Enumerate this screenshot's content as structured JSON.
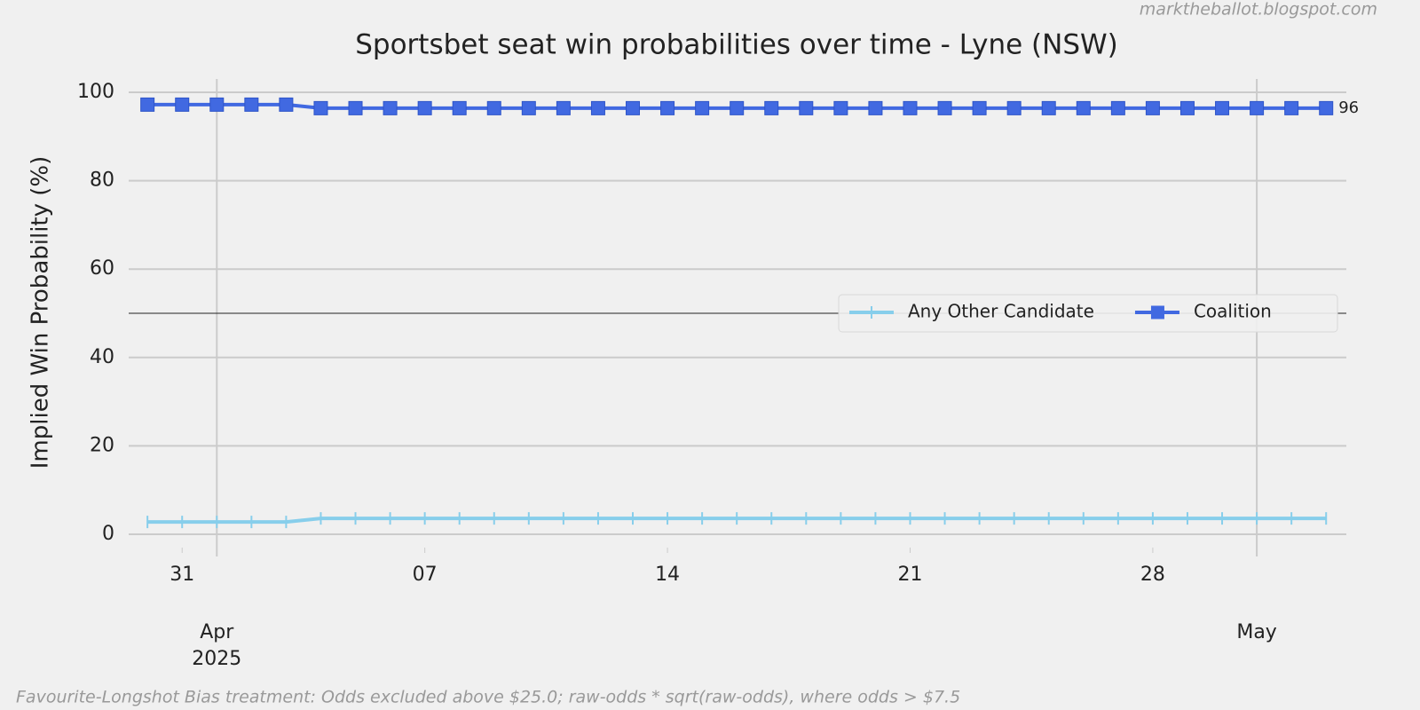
{
  "chart_data": {
    "type": "line",
    "title": "Sportsbet seat win probabilities over time - Lyne (NSW)",
    "y_label": "Implied Win Probability (%)",
    "watermark": "marktheballot.blogspot.com",
    "footnote": "Favourite-Longshot Bias treatment: Odds excluded above $25.0; raw-odds * sqrt(raw-odds), where odds > $7.5",
    "x": [
      "2025-03-30",
      "2025-03-31",
      "2025-04-01",
      "2025-04-02",
      "2025-04-03",
      "2025-04-04",
      "2025-04-05",
      "2025-04-06",
      "2025-04-07",
      "2025-04-08",
      "2025-04-09",
      "2025-04-10",
      "2025-04-11",
      "2025-04-12",
      "2025-04-13",
      "2025-04-14",
      "2025-04-15",
      "2025-04-16",
      "2025-04-17",
      "2025-04-18",
      "2025-04-19",
      "2025-04-20",
      "2025-04-21",
      "2025-04-22",
      "2025-04-23",
      "2025-04-24",
      "2025-04-25",
      "2025-04-26",
      "2025-04-27",
      "2025-04-28",
      "2025-04-29",
      "2025-04-30",
      "2025-05-01",
      "2025-05-02",
      "2025-05-03"
    ],
    "series": [
      {
        "name": "Any Other Candidate",
        "color": "#87ceeb",
        "marker": "tick",
        "values": [
          2.8,
          2.8,
          2.8,
          2.8,
          2.8,
          3.6,
          3.6,
          3.6,
          3.6,
          3.6,
          3.6,
          3.6,
          3.6,
          3.6,
          3.6,
          3.6,
          3.6,
          3.6,
          3.6,
          3.6,
          3.6,
          3.6,
          3.6,
          3.6,
          3.6,
          3.6,
          3.6,
          3.6,
          3.6,
          3.6,
          3.6,
          3.6,
          3.6,
          3.6,
          3.6
        ]
      },
      {
        "name": "Coalition",
        "color": "#4169e1",
        "marker": "square",
        "end_label": "96",
        "values": [
          97.2,
          97.2,
          97.2,
          97.2,
          97.2,
          96.4,
          96.4,
          96.4,
          96.4,
          96.4,
          96.4,
          96.4,
          96.4,
          96.4,
          96.4,
          96.4,
          96.4,
          96.4,
          96.4,
          96.4,
          96.4,
          96.4,
          96.4,
          96.4,
          96.4,
          96.4,
          96.4,
          96.4,
          96.4,
          96.4,
          96.4,
          96.4,
          96.4,
          96.4,
          96.4
        ]
      }
    ],
    "xlim": [
      "2025-03-29T11:00",
      "2025-05-03T14:00"
    ],
    "xticks": [
      {
        "value": "2025-03-31",
        "label": "31"
      },
      {
        "value": "2025-04-07",
        "label": "07"
      },
      {
        "value": "2025-04-14",
        "label": "14"
      },
      {
        "value": "2025-04-21",
        "label": "21"
      },
      {
        "value": "2025-04-28",
        "label": "28"
      }
    ],
    "x_major_ticks": [
      {
        "value": "2025-04-01",
        "label": "Apr",
        "sublabel": "2025"
      },
      {
        "value": "2025-05-01",
        "label": "May"
      }
    ],
    "ylim": [
      -3,
      103
    ],
    "yticks": [
      0,
      20,
      40,
      60,
      80,
      100
    ],
    "hline": 50,
    "grid": true,
    "legend": "right"
  }
}
